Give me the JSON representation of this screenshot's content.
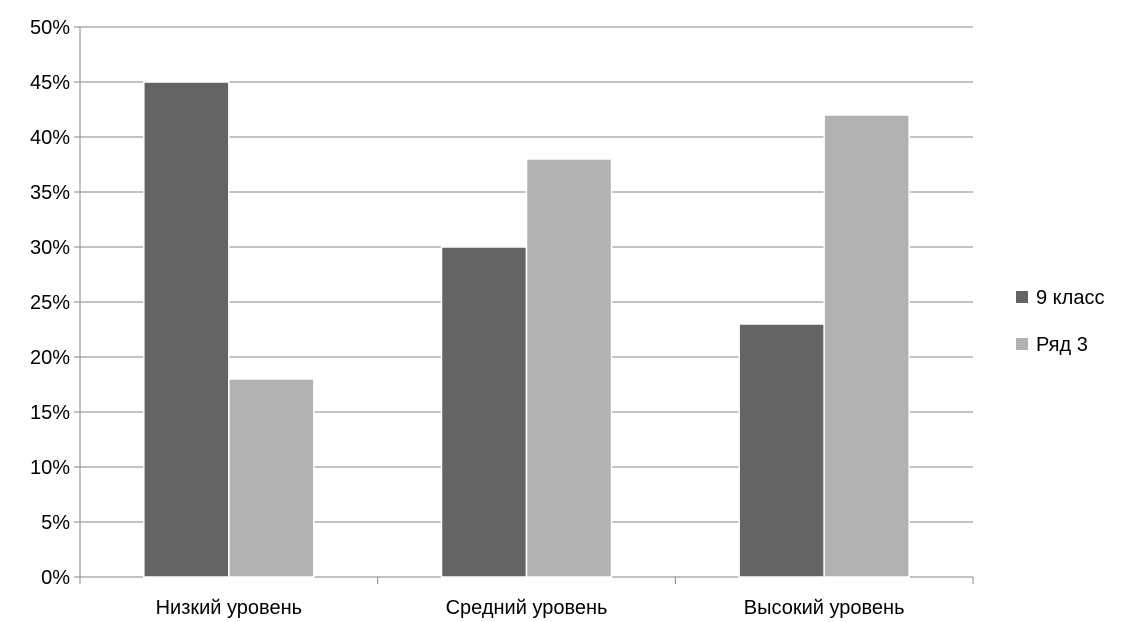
{
  "chart_data": {
    "type": "bar",
    "categories": [
      "Низкий уровень",
      "Средний уровень",
      "Высокий уровень"
    ],
    "series": [
      {
        "name": "9 класс",
        "values": [
          45,
          30,
          23
        ],
        "color": "#646464"
      },
      {
        "name": "Ряд 3",
        "values": [
          18,
          38,
          42
        ],
        "color": "#b2b2b2"
      }
    ],
    "y_ticks": [
      "0%",
      "5%",
      "10%",
      "15%",
      "20%",
      "25%",
      "30%",
      "35%",
      "40%",
      "45%",
      "50%"
    ],
    "ylim": [
      0,
      50
    ],
    "y_step": 5,
    "grid": true,
    "legend_position": "right"
  }
}
